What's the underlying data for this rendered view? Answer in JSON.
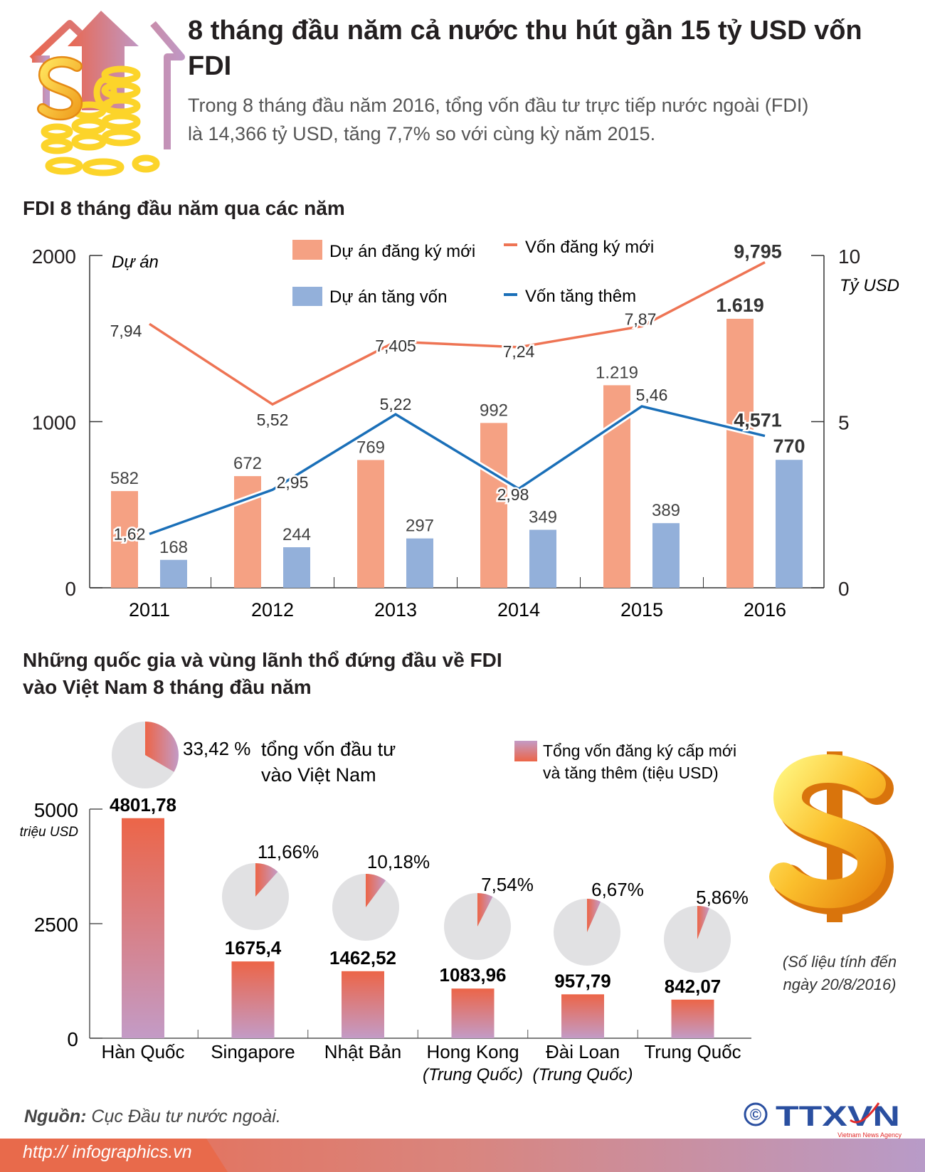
{
  "header": {
    "title": "8 tháng đầu năm cả nước thu hút gần 15 tỷ USD vốn FDI",
    "lead_line1": "Trong 8 tháng đầu năm 2016, tổng vốn đầu tư trực tiếp nước ngoài (FDI)",
    "lead_line2": "là 14,366 tỷ USD, tăng 7,7% so với cùng kỳ năm 2015."
  },
  "section1_title": "FDI 8 tháng đầu năm qua các năm",
  "section2_title_line1": "Những quốc gia và vùng lãnh thổ đứng đầu về FDI",
  "section2_title_line2": "vào Việt Nam 8 tháng đầu năm",
  "colors": {
    "orange_bar": "#f5a183",
    "blue_bar": "#93b0da",
    "orange_line": "#ee7454",
    "blue_line": "#1a6fb8",
    "bar_top": "#ec6548",
    "bar_bottom": "#c39bc6",
    "pie_bg": "#e1e1e3"
  },
  "chart_data": [
    {
      "type": "bar+line",
      "categories": [
        "2011",
        "2012",
        "2013",
        "2014",
        "2015",
        "2016"
      ],
      "left_axis": {
        "label": "Dự án",
        "ticks": [
          "0",
          "1000",
          "2000"
        ],
        "ylim": [
          0,
          2000
        ]
      },
      "right_axis": {
        "label": "Tỷ USD",
        "ticks": [
          "0",
          "5",
          "10"
        ],
        "ylim": [
          0,
          10
        ]
      },
      "legend_position": "top",
      "bars": [
        {
          "name": "Dự án đăng ký mới",
          "values": [
            582,
            672,
            769,
            992,
            1219,
            1619
          ],
          "labels": [
            "582",
            "672",
            "769",
            "992",
            "1.219",
            "1.619"
          ]
        },
        {
          "name": "Dự án tăng vốn",
          "values": [
            168,
            244,
            297,
            349,
            389,
            770
          ],
          "labels": [
            "168",
            "244",
            "297",
            "349",
            "389",
            "770"
          ]
        }
      ],
      "lines": [
        {
          "name": "Vốn đăng ký mới",
          "values": [
            7.94,
            5.52,
            7.405,
            7.24,
            7.87,
            9.795
          ],
          "labels": [
            "7,94",
            "5,52",
            "7,405",
            "7,24",
            "7,87",
            "9,795"
          ]
        },
        {
          "name": "Vốn tăng thêm",
          "values": [
            1.62,
            2.95,
            5.22,
            2.98,
            5.46,
            4.571
          ],
          "labels": [
            "1,62",
            "2,95",
            "5,22",
            "2,98",
            "5,46",
            "4,571"
          ]
        }
      ]
    },
    {
      "type": "bar",
      "categories": [
        {
          "line1": "Hàn Quốc",
          "line2": ""
        },
        {
          "line1": "Singapore",
          "line2": ""
        },
        {
          "line1": "Nhật Bản",
          "line2": ""
        },
        {
          "line1": "Hong Kong",
          "line2": "(Trung Quốc)"
        },
        {
          "line1": "Đài Loan",
          "line2": "(Trung Quốc)"
        },
        {
          "line1": "Trung Quốc",
          "line2": ""
        }
      ],
      "values": [
        4801.78,
        1675.4,
        1462.52,
        1083.96,
        957.79,
        842.07
      ],
      "value_labels": [
        "4801,78",
        "1675,4",
        "1462,52",
        "1083,96",
        "957,79",
        "842,07"
      ],
      "shares": [
        33.42,
        11.66,
        10.18,
        7.54,
        6.67,
        5.86
      ],
      "share_labels": [
        "33,42 %",
        "11,66%",
        "10,18%",
        "7,54%",
        "6,67%",
        "5,86%"
      ],
      "share_caption_line1": "tổng vốn đầu tư",
      "share_caption_line2": "vào Việt Nam",
      "y_axis": {
        "label": "triệu USD",
        "ticks": [
          "0",
          "2500",
          "5000"
        ],
        "ylim": [
          0,
          5000
        ]
      },
      "legend": {
        "line1": "Tổng vốn đăng ký cấp mới",
        "line2": "và tăng thêm (tiệu USD)"
      }
    }
  ],
  "note_line1": "(Số liệu tính đến",
  "note_line2": "ngày 20/8/2016)",
  "source_label": "Nguồn:",
  "source_text": "Cục Đầu tư nước ngoài.",
  "url": "http:// infographics.vn",
  "logo": {
    "text": "TTXVN",
    "subtitle": "Vietnam News Agency",
    "copyright": "©"
  }
}
